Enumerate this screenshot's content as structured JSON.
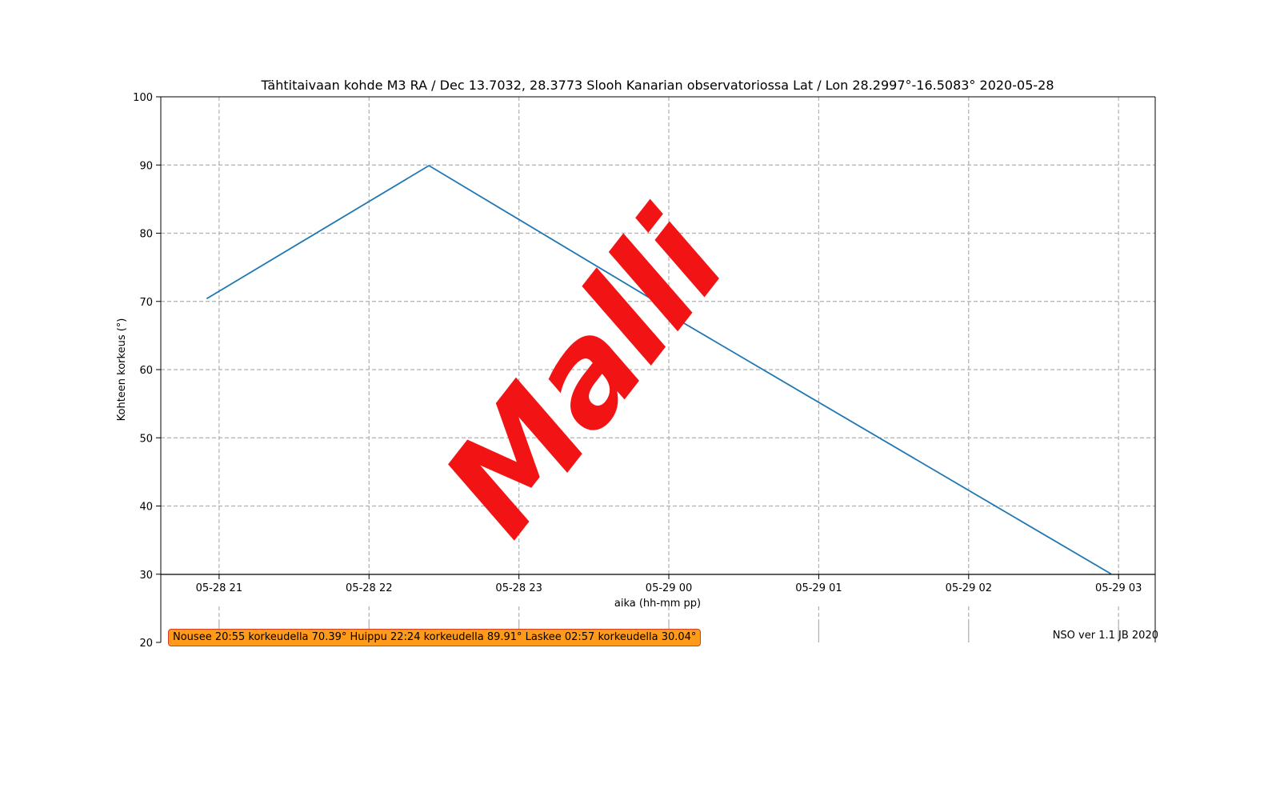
{
  "chart_data": {
    "type": "line",
    "title": "Tähtitaivaan kohde M3 RA / Dec 13.7032, 28.3773 Slooh Kanarian observatoriossa Lat / Lon 28.2997°-16.5083° 2020-05-28",
    "xlabel": "aika (hh-mm pp)",
    "ylabel": "Kohteen korkeus (°)",
    "x_unit": "hours since 2020-05-28 00:00",
    "xlim": [
      20.6111,
      27.2444
    ],
    "ylim": [
      20,
      100
    ],
    "x_ticks": [
      {
        "value": 21,
        "label": "05-28 21"
      },
      {
        "value": 22,
        "label": "05-28 22"
      },
      {
        "value": 23,
        "label": "05-28 23"
      },
      {
        "value": 24,
        "label": "05-29 00"
      },
      {
        "value": 25,
        "label": "05-29 01"
      },
      {
        "value": 26,
        "label": "05-29 02"
      },
      {
        "value": 27,
        "label": "05-29 03"
      }
    ],
    "y_ticks": [
      20,
      30,
      40,
      50,
      60,
      70,
      80,
      90,
      100
    ],
    "grid": true,
    "series": [
      {
        "color": "#1f77b4",
        "points": [
          {
            "x": 20.9167,
            "y": 70.39
          },
          {
            "x": 22.4,
            "y": 89.91
          },
          {
            "x": 23.9722,
            "y": 69.2
          },
          {
            "x": 24.0,
            "y": 68.1
          },
          {
            "x": 26.95,
            "y": 30.04
          }
        ]
      }
    ]
  },
  "info_box": "Nousee 20:55 korkeudella 70.39° Huippu 22:24 korkeudella 89.91° Laskee 02:57 korkeudella 30.04°",
  "footer_note": "NSO ver 1.1 JB 2020",
  "watermark": "Malli"
}
